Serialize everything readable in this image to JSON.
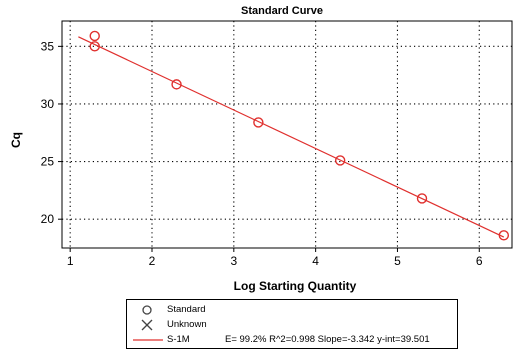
{
  "chart_data": {
    "type": "scatter",
    "title": "Standard Curve",
    "xlabel": "Log Starting Quantity",
    "ylabel": "Cq",
    "xlim": [
      0.9,
      6.4
    ],
    "ylim": [
      17.5,
      37.2
    ],
    "xticks": [
      1,
      2,
      3,
      4,
      5,
      6
    ],
    "yticks": [
      20,
      25,
      30,
      35
    ],
    "grid": true,
    "series": [
      {
        "name": "Standard",
        "marker": "circle",
        "color": "#e0302e",
        "points": [
          [
            1.3,
            35.9
          ],
          [
            1.3,
            35.0
          ],
          [
            2.3,
            31.7
          ],
          [
            3.3,
            28.4
          ],
          [
            4.3,
            25.1
          ],
          [
            5.3,
            21.8
          ],
          [
            6.3,
            18.6
          ]
        ]
      },
      {
        "name": "Unknown",
        "marker": "x",
        "color": "#444444",
        "points": []
      }
    ],
    "fit": {
      "name": "S-1M",
      "slope": -3.342,
      "intercept": 39.501,
      "x_range": [
        1.1,
        6.3
      ],
      "color": "#e0302e",
      "stats": "E= 99.2% R^2=0.998 Slope=-3.342 y-int=39.501"
    },
    "legend_position": "bottom"
  }
}
